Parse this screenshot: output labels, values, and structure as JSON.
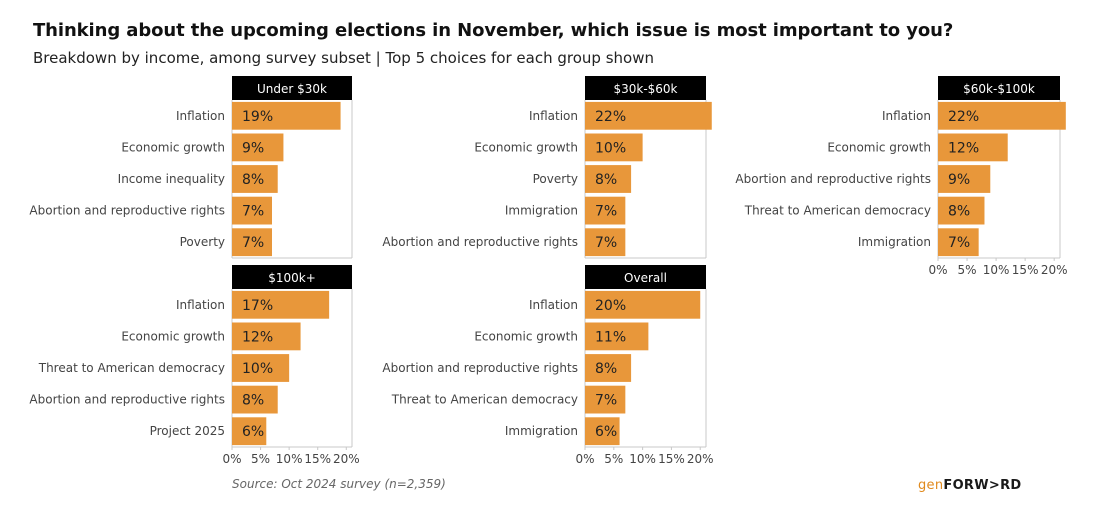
{
  "title": "Thinking about the upcoming elections in November, which issue is most important to you?",
  "subtitle": "Breakdown by income, among survey subset | Top 5 choices for each group shown",
  "source": "Source: Oct 2024 survey (n=2,359)",
  "logo": {
    "gen": "gen",
    "forward": "FORW>RD"
  },
  "colors": {
    "bar": "#e8973a",
    "header_bg": "#000000",
    "header_text": "#ffffff",
    "frame": "#c8c8c8"
  },
  "chart_data": [
    {
      "type": "bar",
      "orientation": "horizontal",
      "title": "Under $30k",
      "categories": [
        "Inflation",
        "Economic growth",
        "Income inequality",
        "Abortion and reproductive rights",
        "Poverty"
      ],
      "values": [
        19,
        9,
        8,
        7,
        7
      ],
      "value_labels": [
        "19%",
        "9%",
        "8%",
        "7%",
        "7%"
      ],
      "xlim": [
        0,
        21
      ],
      "xticks": [],
      "grid": false
    },
    {
      "type": "bar",
      "orientation": "horizontal",
      "title": "$30k-$60k",
      "categories": [
        "Inflation",
        "Economic growth",
        "Poverty",
        "Immigration",
        "Abortion and reproductive rights"
      ],
      "values": [
        22,
        10,
        8,
        7,
        7
      ],
      "value_labels": [
        "22%",
        "10%",
        "8%",
        "7%",
        "7%"
      ],
      "xlim": [
        0,
        21
      ],
      "xticks": [],
      "grid": false
    },
    {
      "type": "bar",
      "orientation": "horizontal",
      "title": "$60k-$100k",
      "categories": [
        "Inflation",
        "Economic growth",
        "Abortion and reproductive rights",
        "Threat to American democracy",
        "Immigration"
      ],
      "values": [
        22,
        12,
        9,
        8,
        7
      ],
      "value_labels": [
        "22%",
        "12%",
        "9%",
        "8%",
        "7%"
      ],
      "xlim": [
        0,
        21
      ],
      "xticks": [
        "0%",
        "5%",
        "10%",
        "15%",
        "20%"
      ],
      "grid": false
    },
    {
      "type": "bar",
      "orientation": "horizontal",
      "title": "$100k+",
      "categories": [
        "Inflation",
        "Economic growth",
        "Threat to American democracy",
        "Abortion and reproductive rights",
        "Project 2025"
      ],
      "values": [
        17,
        12,
        10,
        8,
        6
      ],
      "value_labels": [
        "17%",
        "12%",
        "10%",
        "8%",
        "6%"
      ],
      "xlim": [
        0,
        21
      ],
      "xticks": [
        "0%",
        "5%",
        "10%",
        "15%",
        "20%"
      ],
      "grid": false
    },
    {
      "type": "bar",
      "orientation": "horizontal",
      "title": "Overall",
      "categories": [
        "Inflation",
        "Economic growth",
        "Abortion and reproductive rights",
        "Threat to American democracy",
        "Immigration"
      ],
      "values": [
        20,
        11,
        8,
        7,
        6
      ],
      "value_labels": [
        "20%",
        "11%",
        "8%",
        "7%",
        "6%"
      ],
      "xlim": [
        0,
        21
      ],
      "xticks": [
        "0%",
        "5%",
        "10%",
        "15%",
        "20%"
      ],
      "grid": false
    }
  ]
}
